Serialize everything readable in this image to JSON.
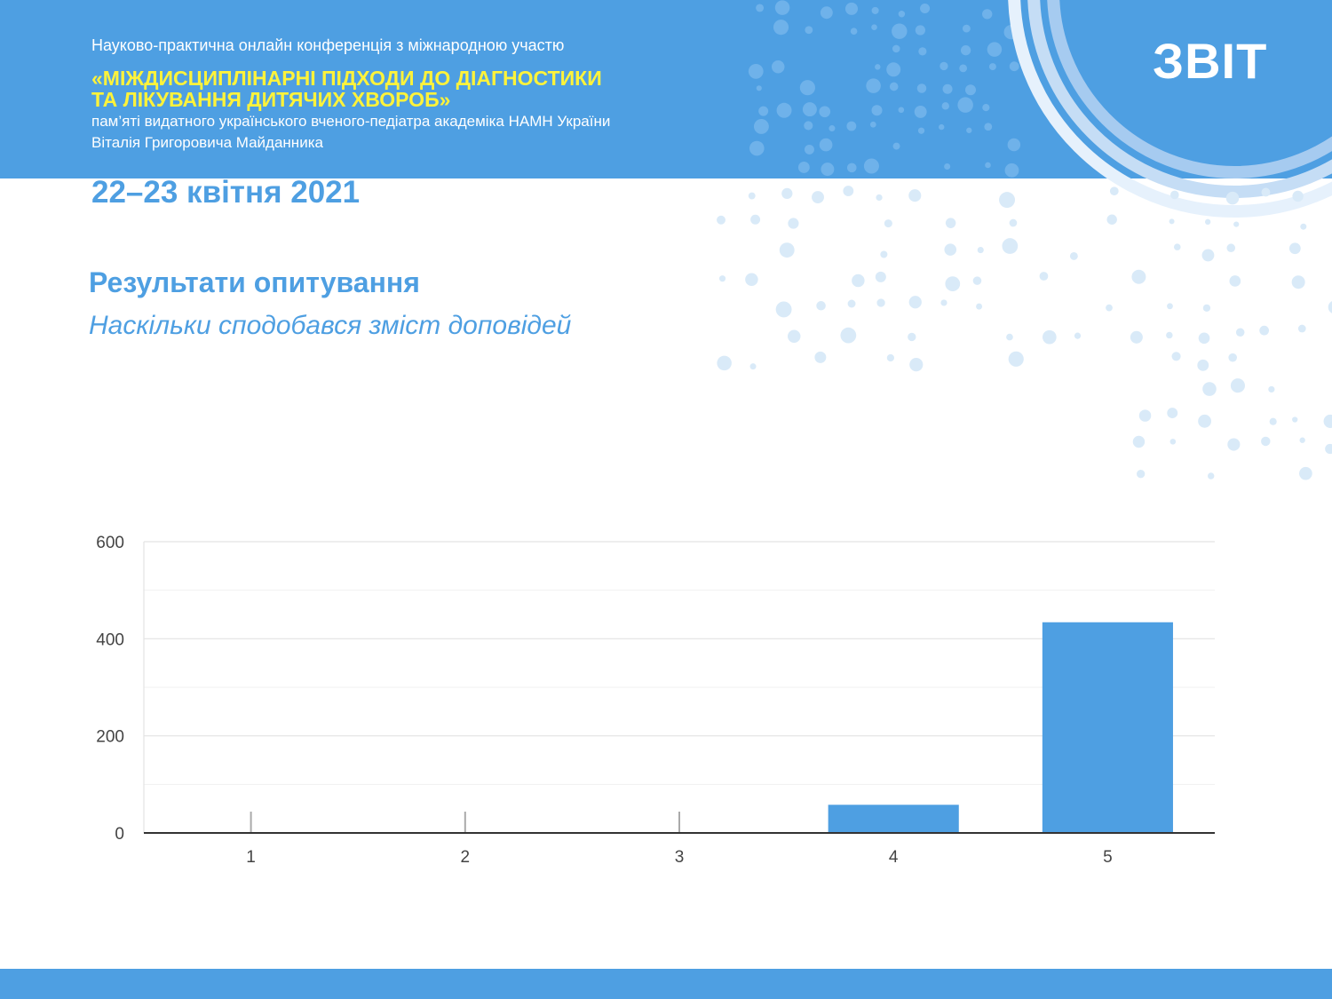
{
  "header": {
    "subtitle": "Науково-практична онлайн конференція з міжнародною участю",
    "title_line1": "«МІЖДИСЦИПЛІНАРНІ ПІДХОДИ ДО ДІАГНОСТИКИ",
    "title_line2": "ТА ЛІКУВАННЯ ДИТЯЧИХ ХВОРОБ»",
    "memorial_line1": "пам’яті видатного українського вченого-педіатра академіка НАМН України",
    "memorial_line2": "Віталія Григоровича Майданника",
    "date": "22–23 квітня 2021",
    "report_label": "ЗВІТ"
  },
  "section": {
    "title": "Результати опитування",
    "question": "Наскільки сподобався зміст доповідей"
  },
  "colors": {
    "accent": "#4e9fe2",
    "title_yellow": "#fff33a",
    "bar": "#4e9fe2"
  },
  "chart_data": {
    "type": "bar",
    "categories": [
      "1",
      "2",
      "3",
      "4",
      "5"
    ],
    "values": [
      0,
      0,
      0,
      58,
      434
    ],
    "ylim": [
      0,
      600
    ],
    "yticks": [
      0,
      200,
      400,
      600
    ],
    "title": "",
    "xlabel": "",
    "ylabel": "",
    "grid": true,
    "legend": "none"
  }
}
